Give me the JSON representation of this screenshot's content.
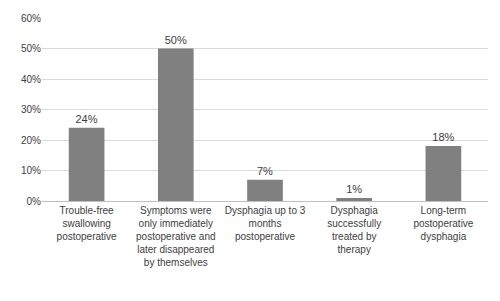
{
  "chart_data": {
    "type": "bar",
    "categories": [
      "Trouble-free swallowing postoperative",
      "Symptoms were only immediately postoperative and later disappeared by themselves",
      "Dysphagia up to 3 months postoperative",
      "Dysphagia successfully treated by therapy",
      "Long-term postoperative dysphagia"
    ],
    "values": [
      24,
      50,
      7,
      1,
      18
    ],
    "value_labels": [
      "24%",
      "50%",
      "7%",
      "1%",
      "18%"
    ],
    "color": "#808080",
    "ylim": [
      0,
      60
    ],
    "yticks": [
      {
        "value": 0,
        "label": "0%"
      },
      {
        "value": 10,
        "label": "10%"
      },
      {
        "value": 20,
        "label": "20%"
      },
      {
        "value": 30,
        "label": "30%"
      },
      {
        "value": 40,
        "label": "40%"
      },
      {
        "value": 50,
        "label": "50%"
      },
      {
        "value": 60,
        "label": "60%"
      }
    ],
    "grid": true,
    "data_labels": true
  }
}
